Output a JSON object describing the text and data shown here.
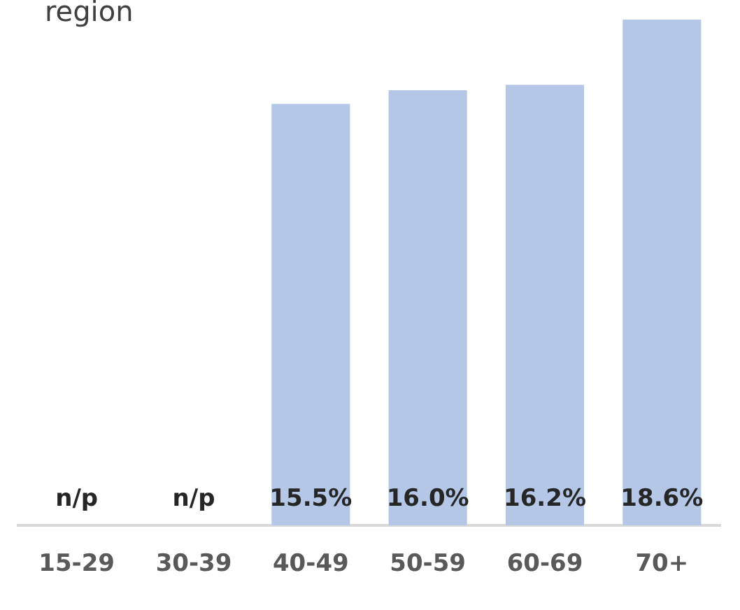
{
  "chart_data": {
    "type": "bar",
    "title": "region",
    "categories": [
      "15-29",
      "30-39",
      "40-49",
      "50-59",
      "60-69",
      "70+"
    ],
    "values": [
      null,
      null,
      15.5,
      16.0,
      16.2,
      18.6
    ],
    "value_labels": [
      "n/p",
      "n/p",
      "15.5%",
      "16.0%",
      "16.2%",
      "18.6%"
    ],
    "color": "#b4c7e7",
    "ylim": [
      0,
      18.6
    ],
    "grid": false,
    "legend": false,
    "tick_labels": "x"
  }
}
